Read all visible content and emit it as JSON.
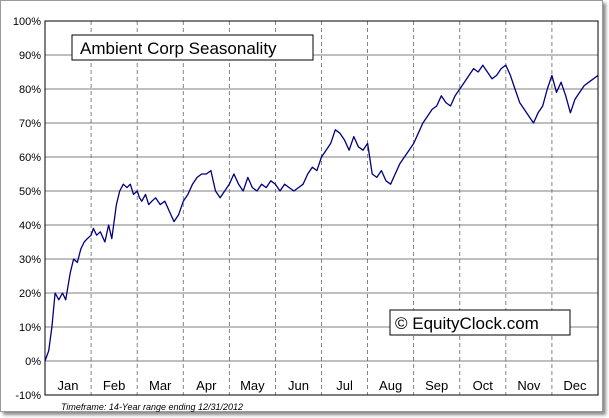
{
  "chart_data": {
    "type": "line",
    "title": "Ambient Corp Seasonality",
    "watermark": "© EquityClock.com",
    "footnote": "Timeframe: 14-Year range ending 12/31/2012",
    "xlabel": "",
    "ylabel": "",
    "x_categories": [
      "Jan",
      "Feb",
      "Mar",
      "Apr",
      "May",
      "Jun",
      "Jul",
      "Aug",
      "Sep",
      "Oct",
      "Nov",
      "Dec"
    ],
    "y_ticks": [
      "-10%",
      "0%",
      "10%",
      "20%",
      "30%",
      "40%",
      "50%",
      "60%",
      "70%",
      "80%",
      "90%",
      "100%"
    ],
    "ylim": [
      -10,
      100
    ],
    "xlim": [
      0,
      12
    ],
    "grid": {
      "horizontal": "solid",
      "vertical": "dashed"
    },
    "line_color": "#000080",
    "series": [
      {
        "x": [
          0.0,
          0.08,
          0.15,
          0.22,
          0.3,
          0.38,
          0.45,
          0.5,
          0.55,
          0.62,
          0.7,
          0.78,
          0.85,
          0.92,
          1.0,
          1.05,
          1.12,
          1.2,
          1.3,
          1.38,
          1.45,
          1.55,
          1.62,
          1.7,
          1.78,
          1.85,
          1.92,
          2.0,
          2.05,
          2.1,
          2.18,
          2.25,
          2.32,
          2.4,
          2.5,
          2.6,
          2.7,
          2.8,
          2.9,
          3.0,
          3.1,
          3.2,
          3.3,
          3.4,
          3.5,
          3.6,
          3.7,
          3.8,
          3.9,
          4.0,
          4.1,
          4.2,
          4.3,
          4.4,
          4.5,
          4.6,
          4.7,
          4.8,
          4.9,
          5.0,
          5.1,
          5.2,
          5.3,
          5.4,
          5.5,
          5.6,
          5.7,
          5.8,
          5.9,
          6.0,
          6.1,
          6.2,
          6.3,
          6.4,
          6.5,
          6.6,
          6.7,
          6.8,
          6.9,
          7.0,
          7.1,
          7.2,
          7.3,
          7.4,
          7.5,
          7.6,
          7.7,
          7.8,
          7.9,
          8.0,
          8.1,
          8.2,
          8.3,
          8.4,
          8.5,
          8.6,
          8.7,
          8.8,
          8.9,
          9.0,
          9.1,
          9.2,
          9.3,
          9.4,
          9.5,
          9.6,
          9.7,
          9.8,
          9.9,
          10.0,
          10.1,
          10.2,
          10.3,
          10.4,
          10.5,
          10.6,
          10.7,
          10.8,
          10.9,
          11.0,
          11.1,
          11.2,
          11.3,
          11.4,
          11.5,
          11.6,
          11.7,
          11.8,
          11.9,
          12.0
        ],
        "values": [
          0,
          3,
          10,
          20,
          18,
          20,
          18,
          22,
          26,
          30,
          29,
          33,
          35,
          36,
          37,
          39,
          37,
          38,
          35,
          40,
          36,
          46,
          50,
          52,
          51,
          52,
          49,
          50,
          48,
          47,
          49,
          46,
          47,
          48,
          46,
          47,
          44,
          41,
          43,
          47,
          49,
          52,
          54,
          55,
          55,
          56,
          50,
          48,
          50,
          52,
          55,
          52,
          50,
          54,
          51,
          50,
          52,
          51,
          53,
          52,
          50,
          52,
          51,
          50,
          51,
          52,
          55,
          57,
          56,
          60,
          62,
          64,
          68,
          67,
          65,
          62,
          66,
          63,
          62,
          64,
          55,
          54,
          56,
          53,
          52,
          55,
          58,
          60,
          62,
          64,
          67,
          70,
          72,
          74,
          75,
          78,
          76,
          75,
          78,
          80,
          82,
          84,
          86,
          85,
          87,
          85,
          83,
          84,
          86,
          87,
          84,
          80,
          76,
          74,
          72,
          70,
          73,
          75,
          80,
          84,
          79,
          82,
          78,
          73,
          77,
          79,
          81,
          82,
          83,
          84
        ]
      }
    ]
  }
}
